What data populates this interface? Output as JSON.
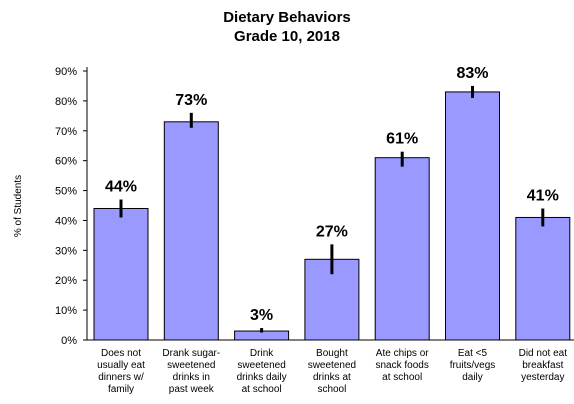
{
  "chart_data": {
    "type": "bar",
    "title": "Dietary Behaviors",
    "subtitle": "Grade 10, 2018",
    "ylabel": "% of Students",
    "xlabel": "",
    "ylim": [
      0,
      90
    ],
    "yticks": [
      "0%",
      "10%",
      "20%",
      "30%",
      "40%",
      "50%",
      "60%",
      "70%",
      "80%",
      "90%"
    ],
    "categories": [
      [
        "Does not",
        "usually eat",
        "dinners w/",
        "family"
      ],
      [
        "Drank sugar-",
        "sweetened",
        "drinks in",
        "past week"
      ],
      [
        "Drink",
        "sweetened",
        "drinks daily",
        "at school"
      ],
      [
        "Bought",
        "sweetened",
        "drinks at",
        "school"
      ],
      [
        "Ate chips or",
        "snack foods",
        "at school"
      ],
      [
        "Eat <5",
        "fruits/vegs",
        "daily"
      ],
      [
        "Did not eat",
        "breakfast",
        "yesterday"
      ]
    ],
    "values": [
      44,
      73,
      3,
      27,
      61,
      83,
      41
    ],
    "data_labels": [
      "44%",
      "73%",
      "3%",
      "27%",
      "61%",
      "83%",
      "41%"
    ],
    "error_bars": [
      [
        41,
        47
      ],
      [
        71,
        76
      ],
      [
        2.5,
        4
      ],
      [
        22,
        32
      ],
      [
        58,
        63
      ],
      [
        81,
        85
      ],
      [
        38,
        44
      ]
    ],
    "colors": {
      "bar": "#9999ff",
      "bar_border": "#000000",
      "error": "#000000"
    },
    "grid": false,
    "legend": "none"
  }
}
